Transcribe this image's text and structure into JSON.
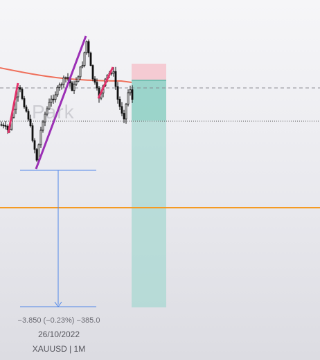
{
  "chart_data": {
    "type": "candlestick",
    "symbol_label": "XAUUSD | 1M",
    "date_label": "26/10/2022",
    "measure_label": "−3.850 (−0.23%) −385.0",
    "watermark": "Park",
    "colors": {
      "candle": "#111111",
      "ma_line": "#ef6f5a",
      "zigzag_up": "#9b2fb5",
      "zigzag_down": "#e2336b",
      "support": "#f59a22",
      "measure": "#4f86e8",
      "stop_zone": "#f5c7cf",
      "target_zone": "#a8d8d1",
      "target_top": "#6fc4b5"
    }
  }
}
